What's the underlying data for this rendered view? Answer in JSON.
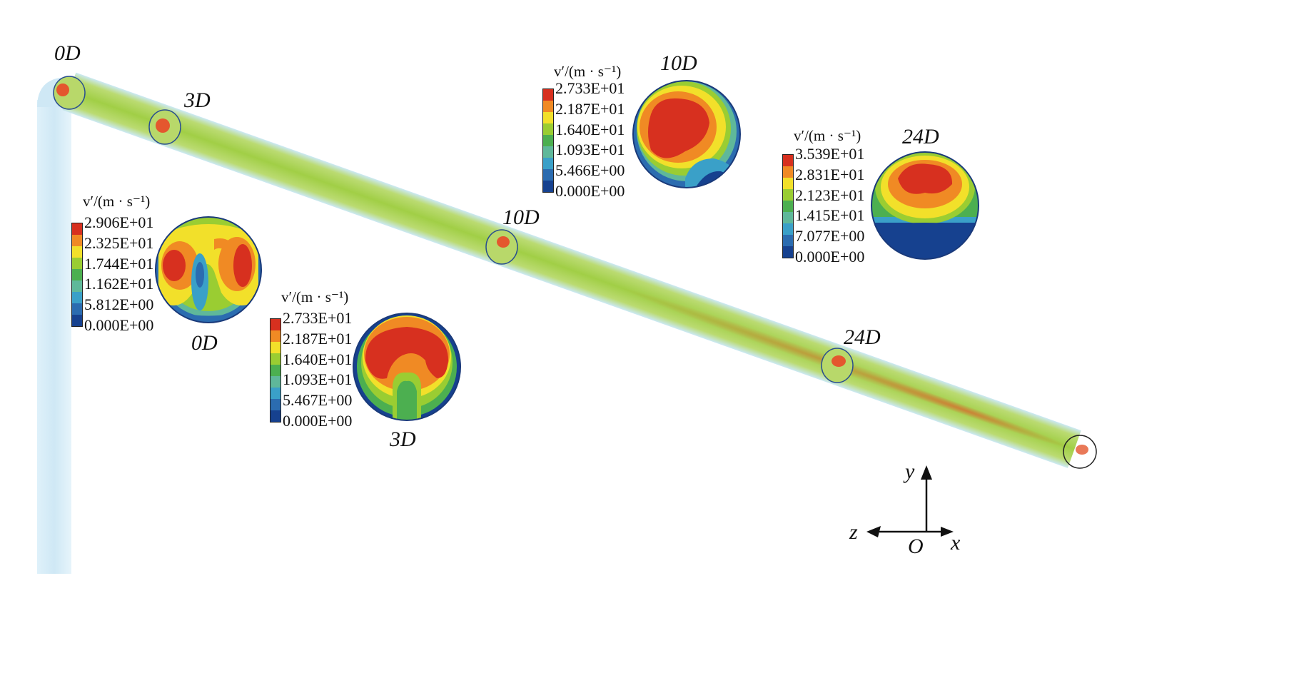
{
  "pipe_labels": {
    "d0": "0D",
    "d3": "3D",
    "d10": "10D",
    "d24": "24D"
  },
  "legend_title": "v′/(m · s⁻¹)",
  "legends": [
    {
      "name": "0D",
      "values": [
        "2.906E+01",
        "2.325E+01",
        "1.744E+01",
        "1.162E+01",
        "5.812E+00",
        "0.000E+00"
      ]
    },
    {
      "name": "3D",
      "values": [
        "2.733E+01",
        "2.187E+01",
        "1.640E+01",
        "1.093E+01",
        "5.467E+00",
        "0.000E+00"
      ]
    },
    {
      "name": "10D",
      "values": [
        "2.733E+01",
        "2.187E+01",
        "1.640E+01",
        "1.093E+01",
        "5.466E+00",
        "0.000E+00"
      ]
    },
    {
      "name": "24D",
      "values": [
        "3.539E+01",
        "2.831E+01",
        "2.123E+01",
        "1.415E+01",
        "7.077E+00",
        "0.000E+00"
      ]
    }
  ],
  "section_labels": {
    "s0": "0D",
    "s3": "3D",
    "s10": "10D",
    "s24": "24D"
  },
  "axes": {
    "x": "x",
    "y": "y",
    "z": "z",
    "origin": "O"
  },
  "colormap": [
    "#d7301f",
    "#f08a24",
    "#f2e02a",
    "#9acd32",
    "#4caf50",
    "#5fb89a",
    "#3aa0c8",
    "#2b6cb0",
    "#16418f"
  ]
}
